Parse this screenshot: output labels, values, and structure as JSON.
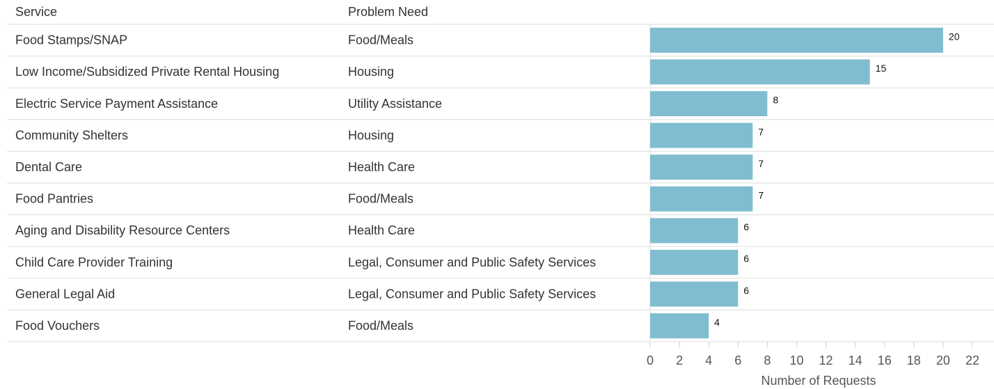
{
  "chart_data": {
    "type": "bar",
    "orientation": "horizontal",
    "column_headers": [
      "Service",
      "Problem Need"
    ],
    "categories": [
      "Food Stamps/SNAP",
      "Low Income/Subsidized Private Rental Housing",
      "Electric Service Payment Assistance",
      "Community Shelters",
      "Dental Care",
      "Food Pantries",
      "Aging and Disability Resource Centers",
      "Child Care Provider Training",
      "General Legal Aid",
      "Food Vouchers"
    ],
    "problem_need": [
      "Food/Meals",
      "Housing",
      "Utility Assistance",
      "Housing",
      "Health Care",
      "Food/Meals",
      "Health Care",
      "Legal, Consumer and Public Safety Services",
      "Legal, Consumer and Public Safety Services",
      "Food/Meals"
    ],
    "values": [
      20,
      15,
      8,
      7,
      7,
      7,
      6,
      6,
      6,
      4
    ],
    "color": "#80bdd0",
    "xlabel": "Number of Requests",
    "xlim": [
      0,
      22
    ],
    "xticks": [
      0,
      2,
      4,
      6,
      8,
      10,
      12,
      14,
      16,
      18,
      20,
      22
    ]
  }
}
